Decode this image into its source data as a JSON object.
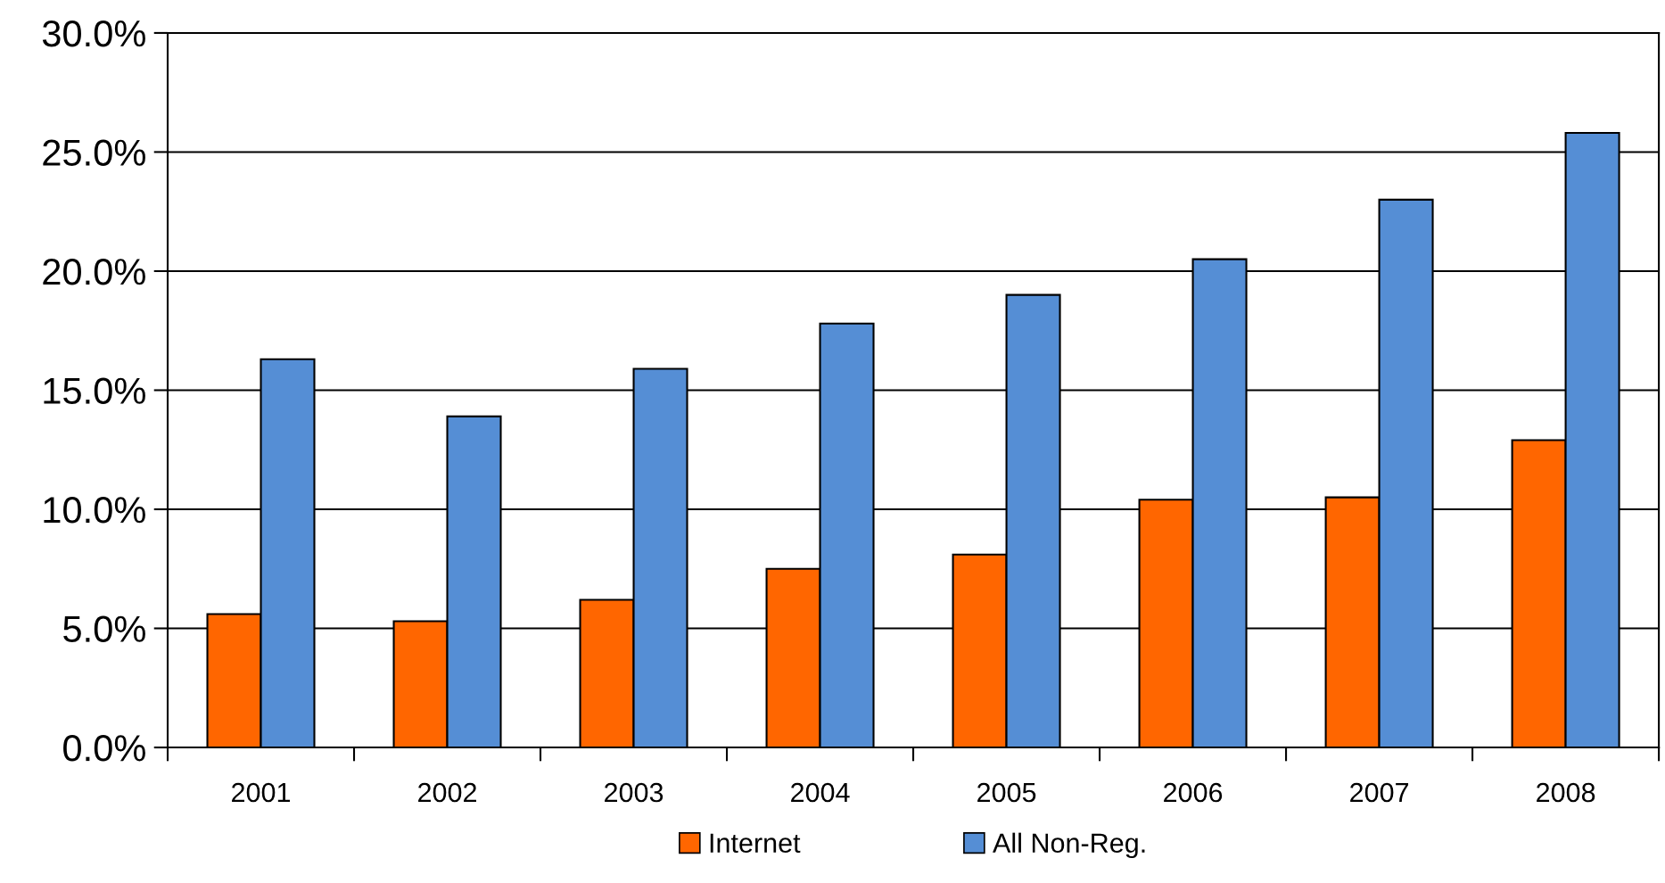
{
  "chart_data": {
    "type": "bar",
    "categories": [
      "2001",
      "2002",
      "2003",
      "2004",
      "2005",
      "2006",
      "2007",
      "2008"
    ],
    "series": [
      {
        "name": "Internet",
        "color": "#ff6600",
        "values": [
          5.6,
          5.3,
          6.2,
          7.5,
          8.1,
          10.4,
          10.5,
          12.9
        ]
      },
      {
        "name": "All Non-Reg.",
        "color": "#558ed5",
        "values": [
          16.3,
          13.9,
          15.9,
          17.8,
          19.0,
          20.5,
          23.0,
          25.8
        ]
      }
    ],
    "ylim": [
      0,
      30
    ],
    "yticks": [
      {
        "value": 0,
        "label": "0.0%"
      },
      {
        "value": 5,
        "label": "5.0%"
      },
      {
        "value": 10,
        "label": "10.0%"
      },
      {
        "value": 15,
        "label": "15.0%"
      },
      {
        "value": 20,
        "label": "20.0%"
      },
      {
        "value": 25,
        "label": "25.0%"
      },
      {
        "value": 30,
        "label": "30.0%"
      }
    ],
    "grid": "y",
    "legend": "bottom"
  }
}
